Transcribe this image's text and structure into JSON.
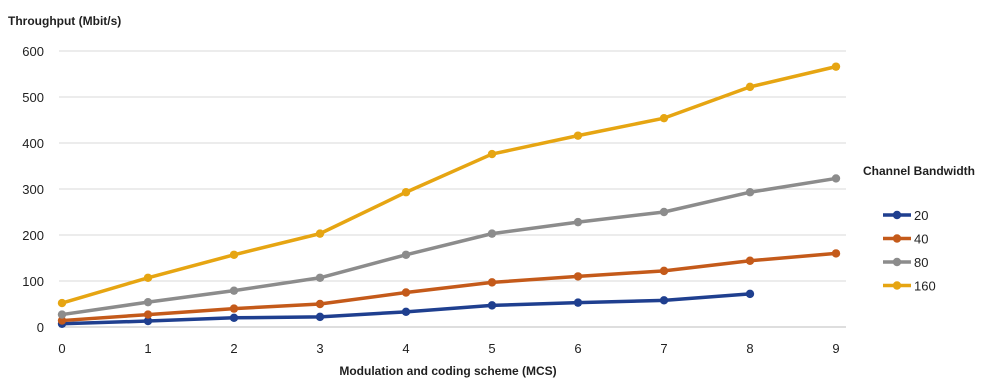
{
  "chart_data": {
    "type": "line",
    "ylabel": "Throughput (Mbit/s)",
    "xlabel": "Modulation and coding scheme (MCS)",
    "x": [
      0,
      1,
      2,
      3,
      4,
      5,
      6,
      7,
      8,
      9
    ],
    "xlim": [
      0,
      9
    ],
    "ylim": [
      0,
      600
    ],
    "yticks": [
      0,
      100,
      200,
      300,
      400,
      500,
      600
    ],
    "grid": true,
    "legend": {
      "title": "Channel Bandwidth",
      "position": "right"
    },
    "series": [
      {
        "name": "20",
        "color": "#1f3f8f",
        "values": [
          7,
          13,
          20,
          22,
          33,
          47,
          53,
          58,
          72,
          null
        ]
      },
      {
        "name": "40",
        "color": "#c45a1a",
        "values": [
          14,
          27,
          40,
          50,
          75,
          97,
          110,
          122,
          144,
          160
        ]
      },
      {
        "name": "80",
        "color": "#8c8c8c",
        "values": [
          27,
          54,
          79,
          107,
          157,
          203,
          228,
          250,
          293,
          323
        ]
      },
      {
        "name": "160",
        "color": "#e6a512",
        "values": [
          52,
          107,
          157,
          203,
          293,
          376,
          416,
          454,
          522,
          566
        ]
      }
    ]
  }
}
